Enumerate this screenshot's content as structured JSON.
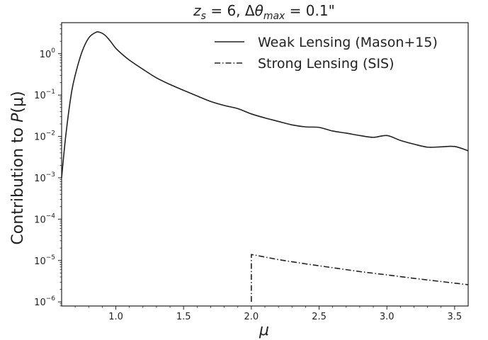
{
  "chart_data": {
    "type": "line",
    "title": "z_s = 6, Δθ_max = 0.1\"",
    "title_parts": {
      "z": "z",
      "z_sub": "s",
      "z_rest": " = 6, Δ",
      "theta": "θ",
      "theta_sub": "max",
      "rest": " = 0.1\""
    },
    "xlabel": "μ",
    "ylabel_text": "Contribution to ",
    "ylabel_math": "P",
    "ylabel_arg": "(μ)",
    "xlim": [
      0.6,
      3.6
    ],
    "ylim_log10": [
      -6.1,
      0.75
    ],
    "yscale": "log",
    "grid": false,
    "legend_position": "top-right",
    "x_ticks": [
      {
        "value": 1.0,
        "label": "1.0"
      },
      {
        "value": 1.5,
        "label": "1.5"
      },
      {
        "value": 2.0,
        "label": "2.0"
      },
      {
        "value": 2.5,
        "label": "2.5"
      },
      {
        "value": 3.0,
        "label": "3.0"
      },
      {
        "value": 3.5,
        "label": "3.5"
      }
    ],
    "y_ticks": [
      {
        "exp": 0,
        "label": "10",
        "sup": "0"
      },
      {
        "exp": -1,
        "label": "10",
        "sup": "−1"
      },
      {
        "exp": -2,
        "label": "10",
        "sup": "−2"
      },
      {
        "exp": -3,
        "label": "10",
        "sup": "−3"
      },
      {
        "exp": -4,
        "label": "10",
        "sup": "−4"
      },
      {
        "exp": -5,
        "label": "10",
        "sup": "−5"
      },
      {
        "exp": -6,
        "label": "10",
        "sup": "−6"
      }
    ],
    "series": [
      {
        "name": "Weak Lensing (Mason+15)",
        "style": "solid",
        "color": "#222222",
        "x": [
          0.6,
          0.63,
          0.67,
          0.7,
          0.75,
          0.8,
          0.85,
          0.88,
          0.92,
          0.96,
          1.0,
          1.05,
          1.1,
          1.2,
          1.3,
          1.4,
          1.5,
          1.6,
          1.7,
          1.8,
          1.9,
          2.0,
          2.1,
          2.2,
          2.3,
          2.4,
          2.5,
          2.6,
          2.7,
          2.8,
          2.9,
          3.0,
          3.1,
          3.2,
          3.3,
          3.4,
          3.5,
          3.6
        ],
        "y": [
          0.001,
          0.01,
          0.1,
          0.3,
          1.1,
          2.4,
          3.25,
          3.3,
          2.8,
          2.0,
          1.35,
          0.95,
          0.7,
          0.42,
          0.26,
          0.18,
          0.13,
          0.095,
          0.07,
          0.056,
          0.047,
          0.035,
          0.028,
          0.023,
          0.019,
          0.017,
          0.0165,
          0.0135,
          0.012,
          0.0105,
          0.0095,
          0.0105,
          0.008,
          0.0065,
          0.0055,
          0.0056,
          0.0057,
          0.0045
        ]
      },
      {
        "name": "Strong Lensing (SIS)",
        "style": "dashdot",
        "color": "#222222",
        "x": [
          2.0,
          2.0,
          2.2,
          2.4,
          2.6,
          2.8,
          3.0,
          3.2,
          3.4,
          3.6
        ],
        "y": [
          1e-06,
          1.4e-05,
          1.05e-05,
          8.3e-06,
          6.7e-06,
          5.4e-06,
          4.5e-06,
          3.7e-06,
          3.1e-06,
          2.6e-06
        ]
      }
    ]
  }
}
